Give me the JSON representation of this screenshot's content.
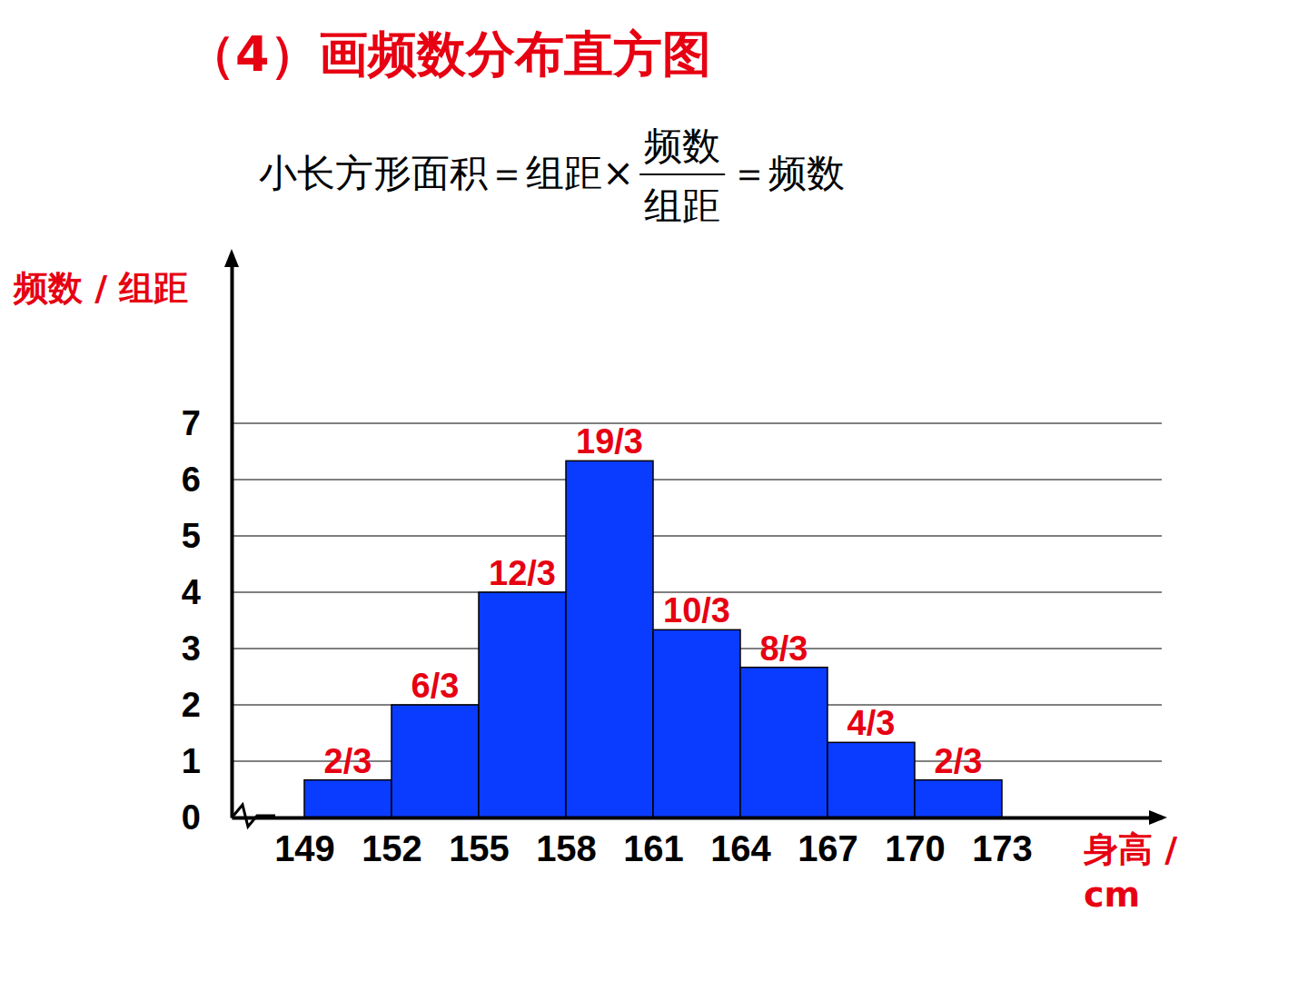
{
  "chart_data": {
    "type": "histogram",
    "title": "（4）画频数分布直方图",
    "formula": {
      "left": "小长方形面积＝组距×",
      "numerator": "频数",
      "denominator": "组距",
      "right": "＝频数"
    },
    "y_label": "频数 / 组距",
    "x_label": "身高 / cm",
    "bins": [
      149,
      152,
      155,
      158,
      161,
      164,
      167,
      170,
      173
    ],
    "values": [
      0.6667,
      2,
      4,
      6.3333,
      3.3333,
      2.6667,
      1.3333,
      0.6667
    ],
    "value_labels": [
      "2/3",
      "6/3",
      "12/3",
      "19/3",
      "10/3",
      "8/3",
      "4/3",
      "2/3"
    ],
    "data_labels": true,
    "color": "#0a3cff",
    "xlim": [
      146.5,
      178.5
    ],
    "xticks": [
      149,
      152,
      155,
      158,
      161,
      164,
      167,
      170,
      173
    ],
    "ylim": [
      0,
      10
    ],
    "yticks": [
      0,
      1,
      2,
      3,
      4,
      5,
      6,
      7
    ],
    "grid": true
  }
}
